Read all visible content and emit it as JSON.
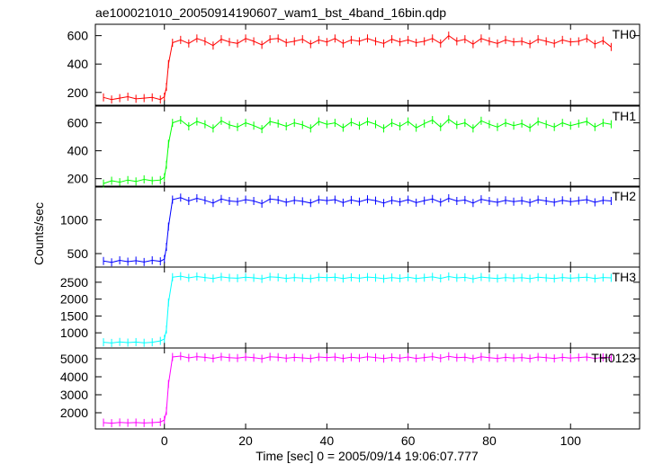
{
  "title": "ae100021010_20050914190607_wam1_bst_4band_16bin.qdp",
  "xlabel": "Time [sec] 0 = 2005/09/14 19:06:07.777",
  "ylabel": "Counts/sec",
  "colors": {
    "TH0": "#ff0000",
    "TH1": "#00ff00",
    "TH2": "#0000ff",
    "TH3": "#00ffff",
    "TH0123": "#ff00ff"
  },
  "chart_data": {
    "type": "line",
    "title": "ae100021010_20050914190607_wam1_bst_4band_16bin.qdp",
    "xlabel": "Time [sec] 0 = 2005/09/14 19:06:07.777",
    "ylabel": "Counts/sec",
    "xlim": [
      -17,
      117
    ],
    "xticks": [
      0,
      20,
      40,
      60,
      80,
      100
    ],
    "grid": false,
    "series": [
      {
        "name": "TH0",
        "ylim": [
          110,
          680
        ],
        "yticks": [
          200,
          400,
          600
        ],
        "x": [
          -15,
          -13,
          -11,
          -9,
          -7,
          -5,
          -3,
          -1,
          0,
          0.5,
          1,
          2,
          4,
          6,
          8,
          10,
          12,
          14,
          16,
          18,
          20,
          22,
          24,
          26,
          28,
          30,
          32,
          34,
          36,
          38,
          40,
          42,
          44,
          46,
          48,
          50,
          52,
          54,
          56,
          58,
          60,
          62,
          64,
          66,
          68,
          70,
          72,
          74,
          76,
          78,
          80,
          82,
          84,
          86,
          88,
          90,
          92,
          94,
          96,
          98,
          100,
          102,
          104,
          106,
          108,
          110
        ],
        "y": [
          165,
          150,
          160,
          170,
          155,
          160,
          165,
          150,
          170,
          240,
          400,
          550,
          570,
          545,
          580,
          560,
          530,
          575,
          555,
          545,
          580,
          560,
          535,
          575,
          580,
          550,
          560,
          575,
          540,
          570,
          555,
          580,
          545,
          570,
          560,
          580,
          560,
          545,
          575,
          555,
          570,
          550,
          560,
          580,
          545,
          600,
          560,
          575,
          540,
          580,
          560,
          545,
          570,
          555,
          560,
          540,
          575,
          560,
          545,
          570,
          555,
          560,
          580,
          540,
          565,
          520
        ]
      },
      {
        "name": "TH1",
        "ylim": [
          140,
          720
        ],
        "yticks": [
          200,
          400,
          600
        ],
        "x": [
          -15,
          -13,
          -11,
          -9,
          -7,
          -5,
          -3,
          -1,
          0,
          0.5,
          1,
          2,
          4,
          6,
          8,
          10,
          12,
          14,
          16,
          18,
          20,
          22,
          24,
          26,
          28,
          30,
          32,
          34,
          36,
          38,
          40,
          42,
          44,
          46,
          48,
          50,
          52,
          54,
          56,
          58,
          60,
          62,
          64,
          66,
          68,
          70,
          72,
          74,
          76,
          78,
          80,
          82,
          84,
          86,
          88,
          90,
          92,
          94,
          96,
          98,
          100,
          102,
          104,
          106,
          108,
          110
        ],
        "y": [
          165,
          185,
          175,
          190,
          180,
          195,
          185,
          190,
          210,
          300,
          450,
          600,
          620,
          575,
          610,
          590,
          560,
          615,
          585,
          570,
          600,
          580,
          555,
          610,
          595,
          575,
          600,
          585,
          560,
          610,
          590,
          600,
          565,
          605,
          580,
          610,
          590,
          560,
          600,
          575,
          610,
          565,
          595,
          620,
          570,
          625,
          585,
          600,
          560,
          615,
          590,
          570,
          600,
          580,
          595,
          565,
          610,
          590,
          570,
          600,
          580,
          595,
          610,
          570,
          600,
          590
        ]
      },
      {
        "name": "TH2",
        "ylim": [
          300,
          1500
        ],
        "yticks": [
          500,
          1000
        ],
        "x": [
          -15,
          -13,
          -11,
          -9,
          -7,
          -5,
          -3,
          -1,
          0,
          0.5,
          1,
          2,
          4,
          6,
          8,
          10,
          12,
          14,
          16,
          18,
          20,
          22,
          24,
          26,
          28,
          30,
          32,
          34,
          36,
          38,
          40,
          42,
          44,
          46,
          48,
          50,
          52,
          54,
          56,
          58,
          60,
          62,
          64,
          66,
          68,
          70,
          72,
          74,
          76,
          78,
          80,
          82,
          84,
          86,
          88,
          90,
          92,
          94,
          96,
          98,
          100,
          102,
          104,
          106,
          108,
          110
        ],
        "y": [
          390,
          370,
          400,
          380,
          395,
          375,
          400,
          385,
          420,
          600,
          900,
          1300,
          1330,
          1280,
          1320,
          1290,
          1250,
          1310,
          1280,
          1270,
          1300,
          1280,
          1240,
          1310,
          1295,
          1260,
          1290,
          1275,
          1250,
          1300,
          1285,
          1300,
          1255,
          1295,
          1270,
          1305,
          1285,
          1250,
          1290,
          1265,
          1300,
          1255,
          1285,
          1310,
          1260,
          1320,
          1280,
          1295,
          1250,
          1305,
          1280,
          1260,
          1290,
          1270,
          1285,
          1255,
          1300,
          1280,
          1260,
          1290,
          1270,
          1285,
          1300,
          1260,
          1290,
          1280
        ]
      },
      {
        "name": "TH3",
        "ylim": [
          550,
          2950
        ],
        "yticks": [
          1000,
          1500,
          2000,
          2500
        ],
        "x": [
          -15,
          -13,
          -11,
          -9,
          -7,
          -5,
          -3,
          -1,
          0,
          0.5,
          1,
          2,
          4,
          6,
          8,
          10,
          12,
          14,
          16,
          18,
          20,
          22,
          24,
          26,
          28,
          30,
          32,
          34,
          36,
          38,
          40,
          42,
          44,
          46,
          48,
          50,
          52,
          54,
          56,
          58,
          60,
          62,
          64,
          66,
          68,
          70,
          72,
          74,
          76,
          78,
          80,
          82,
          84,
          86,
          88,
          90,
          92,
          94,
          96,
          98,
          100,
          102,
          104,
          106,
          108,
          110
        ],
        "y": [
          720,
          700,
          730,
          710,
          725,
          705,
          720,
          760,
          820,
          1100,
          1900,
          2650,
          2680,
          2630,
          2670,
          2640,
          2610,
          2660,
          2630,
          2620,
          2650,
          2630,
          2600,
          2660,
          2645,
          2615,
          2640,
          2625,
          2605,
          2650,
          2635,
          2650,
          2610,
          2645,
          2620,
          2655,
          2635,
          2605,
          2640,
          2615,
          2650,
          2610,
          2635,
          2660,
          2615,
          2670,
          2630,
          2645,
          2600,
          2655,
          2630,
          2610,
          2640,
          2620,
          2635,
          2605,
          2650,
          2630,
          2610,
          2640,
          2620,
          2635,
          2650,
          2610,
          2640,
          2630
        ]
      },
      {
        "name": "TH0123",
        "ylim": [
          1100,
          5600
        ],
        "yticks": [
          2000,
          3000,
          4000,
          5000
        ],
        "x": [
          -15,
          -13,
          -11,
          -9,
          -7,
          -5,
          -3,
          -1,
          0,
          0.5,
          1,
          2,
          4,
          6,
          8,
          10,
          12,
          14,
          16,
          18,
          20,
          22,
          24,
          26,
          28,
          30,
          32,
          34,
          36,
          38,
          40,
          42,
          44,
          46,
          48,
          50,
          52,
          54,
          56,
          58,
          60,
          62,
          64,
          66,
          68,
          70,
          72,
          74,
          76,
          78,
          80,
          82,
          84,
          86,
          88,
          90,
          92,
          94,
          96,
          98,
          100,
          102,
          104,
          106,
          108,
          110
        ],
        "y": [
          1450,
          1420,
          1460,
          1440,
          1455,
          1430,
          1450,
          1480,
          1600,
          2100,
          3600,
          5100,
          5150,
          5050,
          5120,
          5080,
          5020,
          5110,
          5060,
          5040,
          5100,
          5060,
          5000,
          5110,
          5090,
          5030,
          5080,
          5050,
          5010,
          5100,
          5070,
          5100,
          5020,
          5090,
          5040,
          5110,
          5070,
          5010,
          5080,
          5030,
          5100,
          5020,
          5070,
          5120,
          5030,
          5140,
          5060,
          5090,
          5000,
          5110,
          5060,
          5020,
          5080,
          5040,
          5070,
          5010,
          5100,
          5060,
          5020,
          5080,
          5040,
          5070,
          5100,
          5020,
          5080,
          5060
        ]
      }
    ]
  }
}
